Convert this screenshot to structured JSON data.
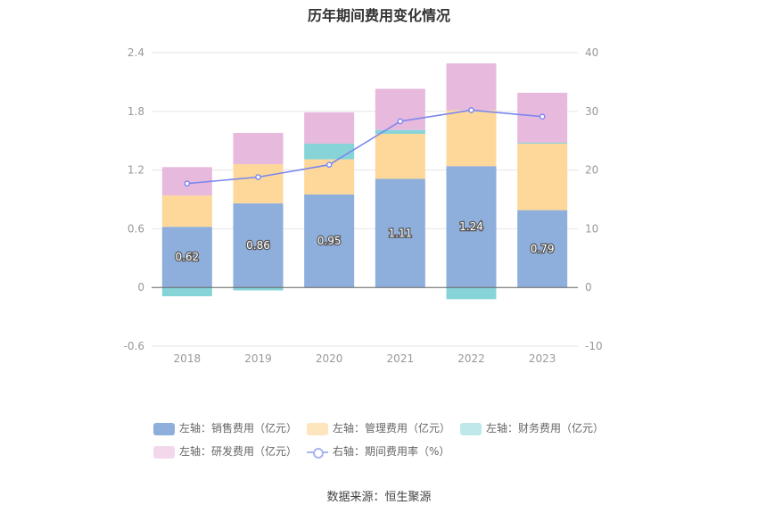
{
  "chart_data": {
    "type": "bar",
    "title": "历年期间费用变化情况",
    "categories": [
      "2018",
      "2019",
      "2020",
      "2021",
      "2022",
      "2023"
    ],
    "left_axis": {
      "ylim": [
        -0.6,
        2.4
      ],
      "ticks": [
        "-0.6",
        "0",
        "0.6",
        "1.2",
        "1.8",
        "2.4"
      ]
    },
    "right_axis": {
      "ylim": [
        -10,
        40
      ],
      "ticks": [
        "-10",
        "0",
        "10",
        "20",
        "30",
        "40"
      ]
    },
    "stacked": true,
    "series": [
      {
        "name": "左轴：销售费用（亿元）",
        "axis": "left",
        "color": "#8eaedb",
        "values": [
          0.62,
          0.86,
          0.95,
          1.11,
          1.24,
          0.79
        ],
        "labels": [
          "0.62",
          "0.86",
          "0.95",
          "1.11",
          "1.24",
          "0.79"
        ]
      },
      {
        "name": "左轴：管理费用（亿元）",
        "axis": "left",
        "color": "#fdd89a",
        "values": [
          0.32,
          0.4,
          0.36,
          0.46,
          0.57,
          0.68
        ]
      },
      {
        "name": "左轴：财务费用（亿元）",
        "axis": "left",
        "color": "#86d4d8",
        "values": [
          -0.09,
          -0.03,
          0.16,
          0.04,
          -0.12,
          0.01
        ]
      },
      {
        "name": "左轴：研发费用（亿元）",
        "axis": "left",
        "color": "#e7b9dd",
        "values": [
          0.29,
          0.32,
          0.32,
          0.42,
          0.48,
          0.51
        ]
      },
      {
        "name": "右轴：期间费用率（%）",
        "axis": "right",
        "type": "line",
        "color": "#7b86f0",
        "values": [
          17.7,
          18.8,
          20.9,
          28.3,
          30.2,
          29.1
        ]
      }
    ],
    "legend_placement": "bottom",
    "grid": true
  },
  "source": "数据来源：恒生聚源"
}
